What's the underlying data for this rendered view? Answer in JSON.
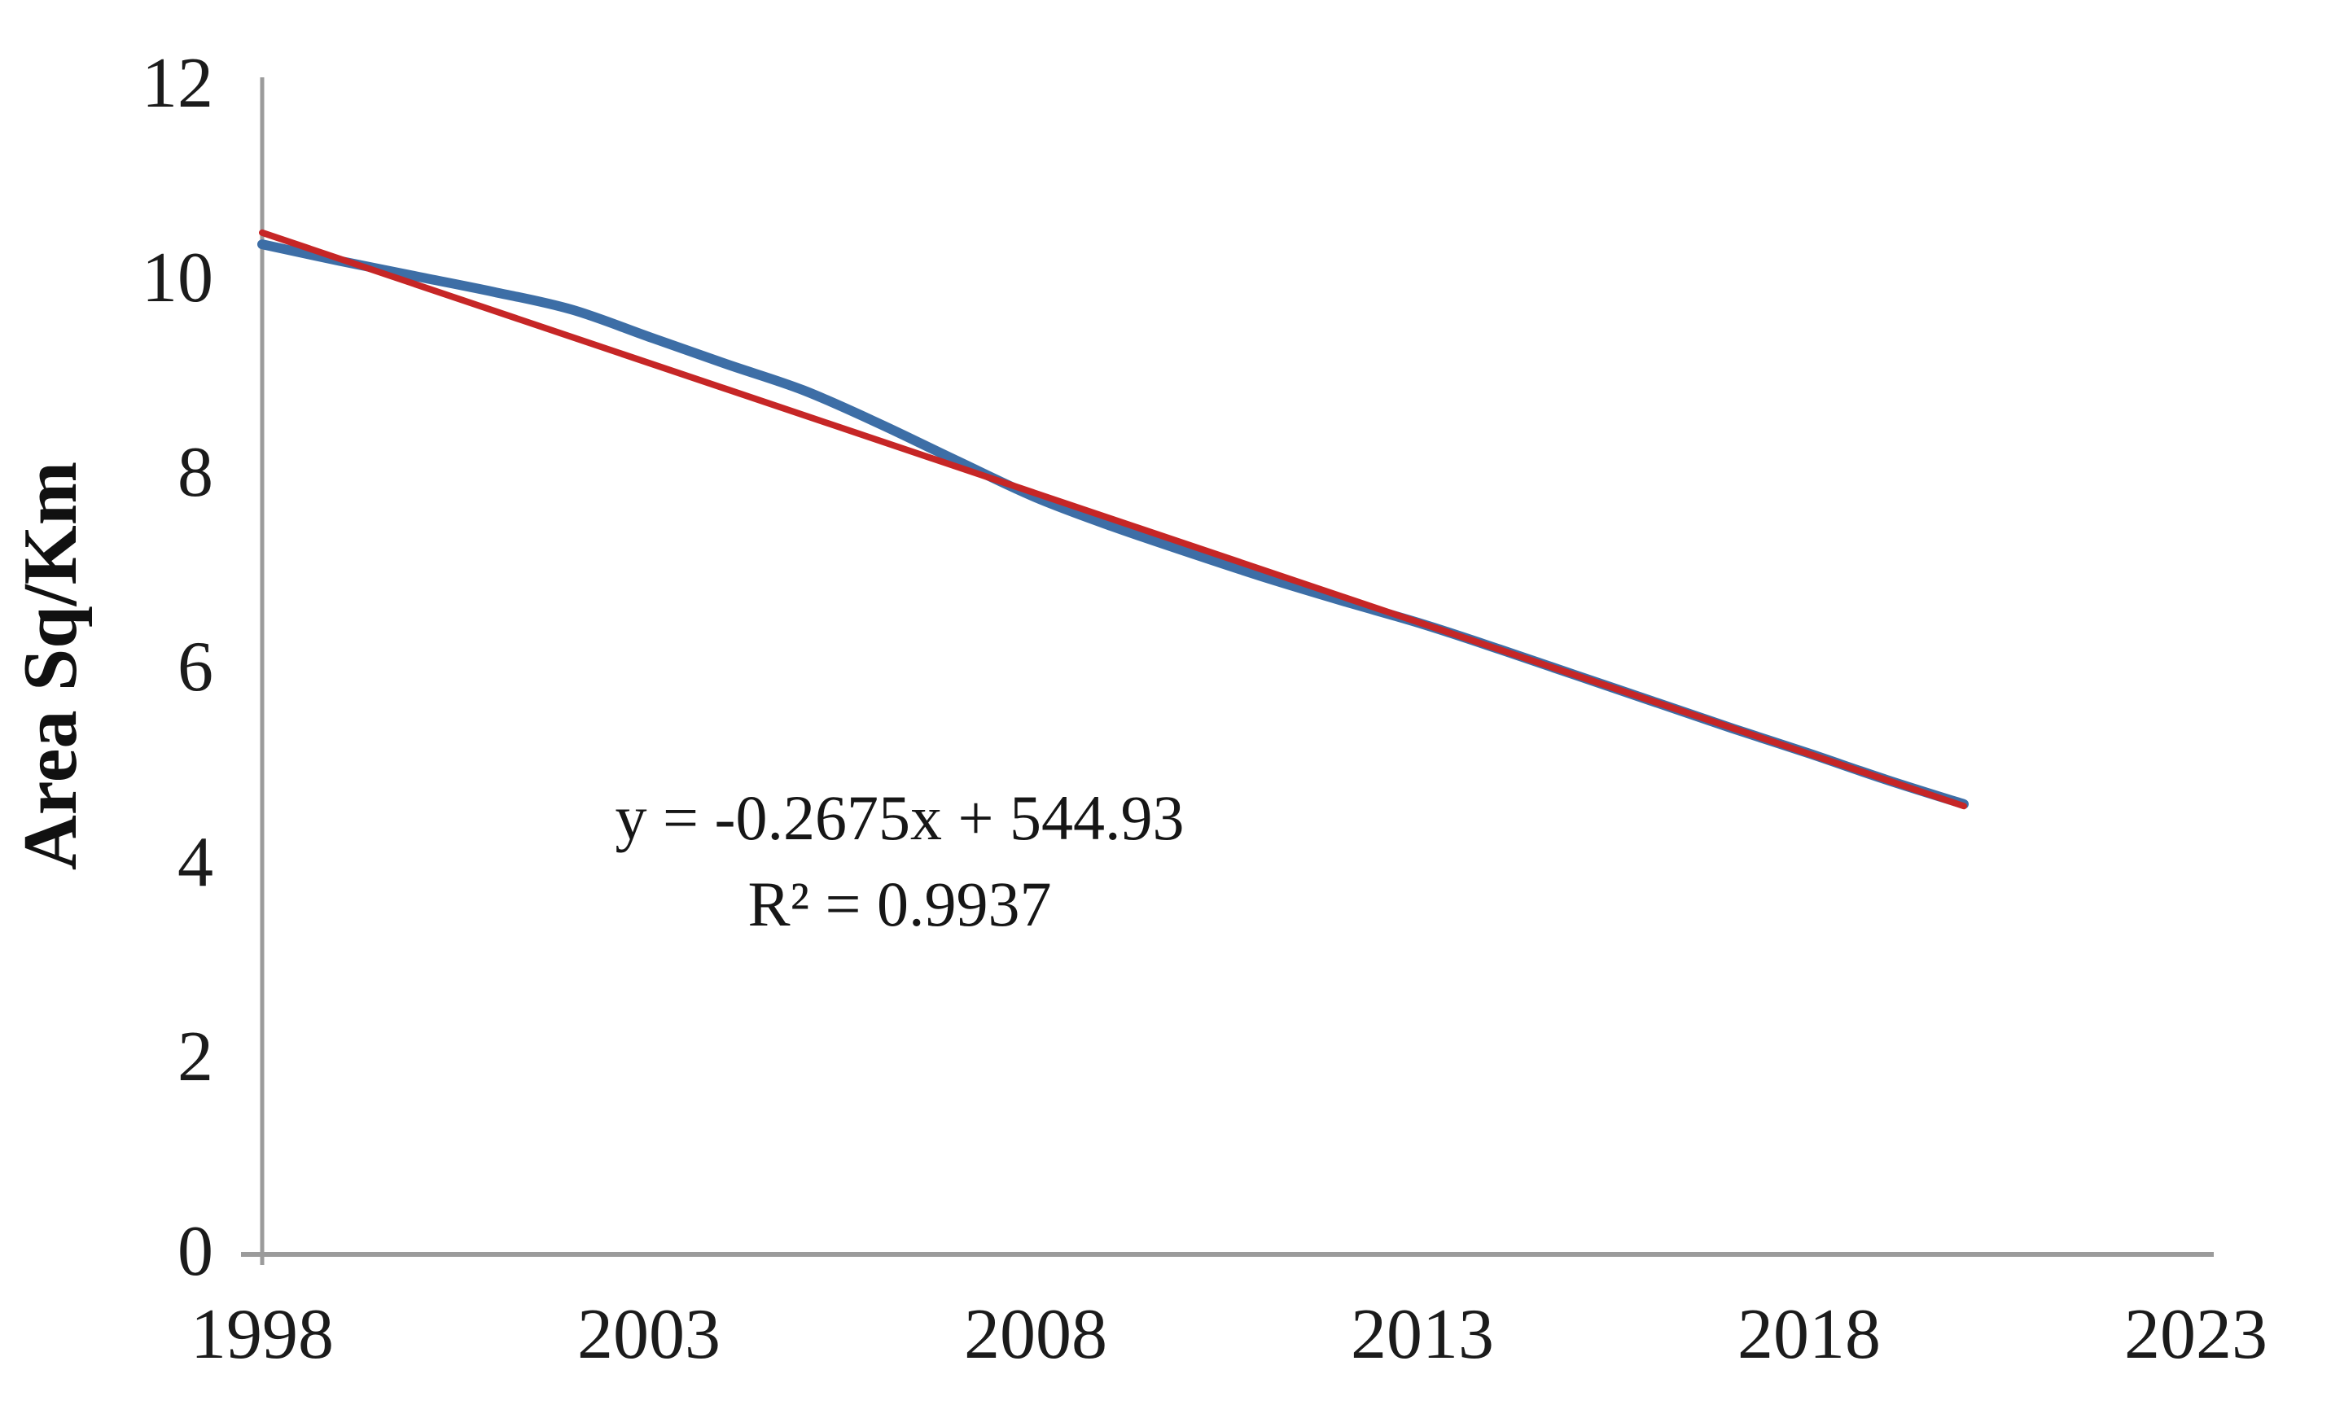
{
  "chart_data": {
    "type": "line",
    "title": "",
    "xlabel": "",
    "ylabel": "Area Sq/Km",
    "xlim": [
      1998,
      2023
    ],
    "ylim": [
      0,
      12
    ],
    "x_ticks": [
      1998,
      2003,
      2008,
      2013,
      2018,
      2023
    ],
    "y_ticks": [
      0,
      2,
      4,
      6,
      8,
      10,
      12
    ],
    "grid": "off",
    "legend": "none",
    "axis_color": "#9b9b9b",
    "text_color": "#1b1b1b",
    "annotation": {
      "line1": "y = -0.2675x + 544.93",
      "line2": "R² = 0.9937"
    },
    "series": [
      {
        "name": "area-sq-km",
        "style": "smooth",
        "color": "#3d6ea6",
        "stroke_width": 12,
        "x": [
          1998,
          1999,
          2000,
          2001,
          2002,
          2003,
          2004,
          2005,
          2006,
          2007,
          2008,
          2009,
          2010,
          2011,
          2012,
          2013,
          2014,
          2015,
          2016,
          2017,
          2018,
          2019,
          2020
        ],
        "values": [
          10.35,
          10.18,
          10.02,
          9.86,
          9.68,
          9.4,
          9.12,
          8.85,
          8.5,
          8.12,
          7.75,
          7.45,
          7.18,
          6.92,
          6.68,
          6.45,
          6.19,
          5.92,
          5.65,
          5.38,
          5.12,
          4.85,
          4.6
        ]
      },
      {
        "name": "linear-trendline",
        "style": "straight",
        "color": "#c62626",
        "stroke_width": 8,
        "x": [
          1998,
          2020
        ],
        "values": [
          10.47,
          4.58
        ]
      }
    ]
  }
}
